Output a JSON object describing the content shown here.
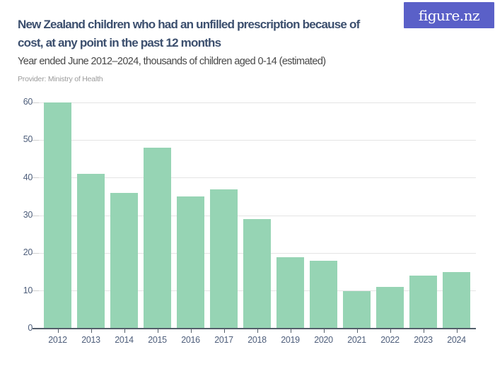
{
  "brand": {
    "logo_text": "figure.nz"
  },
  "header": {
    "title_lines": [
      "New Zealand children who had an unfilled prescription because of",
      "cost, at any point in the past 12 months"
    ],
    "title_full": "New Zealand children who had an unfilled prescription because of cost, at any point in the past 12 months",
    "subtitle": "Year ended June 2012–2024, thousands of children aged 0-14 (estimated)",
    "provider": "Provider: Ministry of Health"
  },
  "colors": {
    "brand_purple": "#5a60c8",
    "logo_text": "#ffffff",
    "bar_green": "#96d4b4",
    "title_navy": "#3c4f6e",
    "axis_dark": "#535e6a",
    "tick_label": "#4e5e7b",
    "gridline": "#e4e4e4",
    "tick_stub": "#cfcfcf"
  },
  "chart_data": {
    "type": "bar",
    "title": "New Zealand children who had an unfilled prescription because of cost, at any point in the past 12 months",
    "subtitle": "Year ended June 2012–2024, thousands of children aged 0-14 (estimated)",
    "categories": [
      "2012",
      "2013",
      "2014",
      "2015",
      "2016",
      "2017",
      "2018",
      "2019",
      "2020",
      "2021",
      "2022",
      "2023",
      "2024"
    ],
    "values": [
      60,
      41,
      36,
      48,
      35,
      37,
      29,
      19,
      18,
      10,
      11,
      14,
      15
    ],
    "xlabel": "",
    "ylabel": "thousands of children aged 0-14",
    "ylim": [
      0,
      60
    ],
    "yticks": [
      0,
      10,
      20,
      30,
      40,
      50,
      60
    ],
    "grid": true,
    "legend": false
  }
}
